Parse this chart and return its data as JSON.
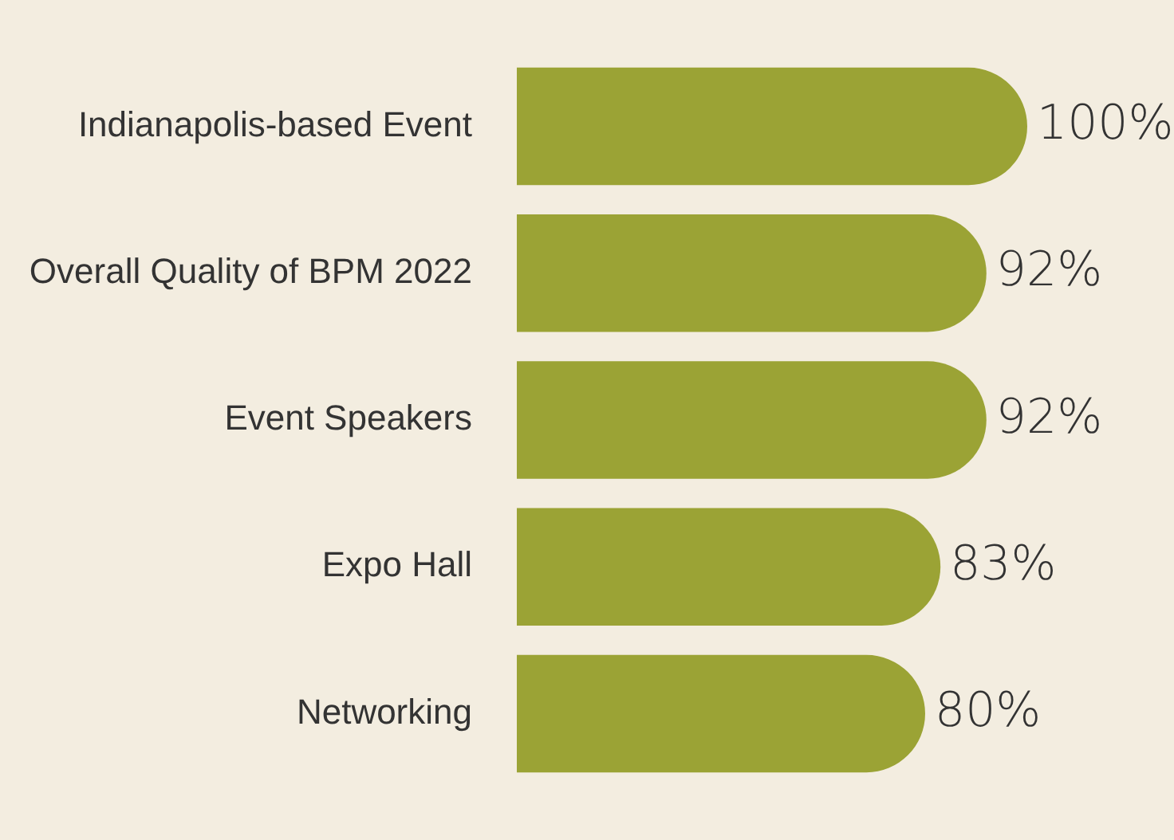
{
  "chart_data": {
    "type": "bar",
    "orientation": "horizontal",
    "categories": [
      "Indianapolis-based Event",
      "Overall Quality of BPM 2022",
      "Event Speakers",
      "Expo Hall",
      "Networking"
    ],
    "values": [
      100,
      92,
      92,
      83,
      80
    ],
    "value_labels": [
      "100%",
      "92%",
      "92%",
      "83%",
      "80%"
    ],
    "color": "#9ba335",
    "legend": false
  }
}
